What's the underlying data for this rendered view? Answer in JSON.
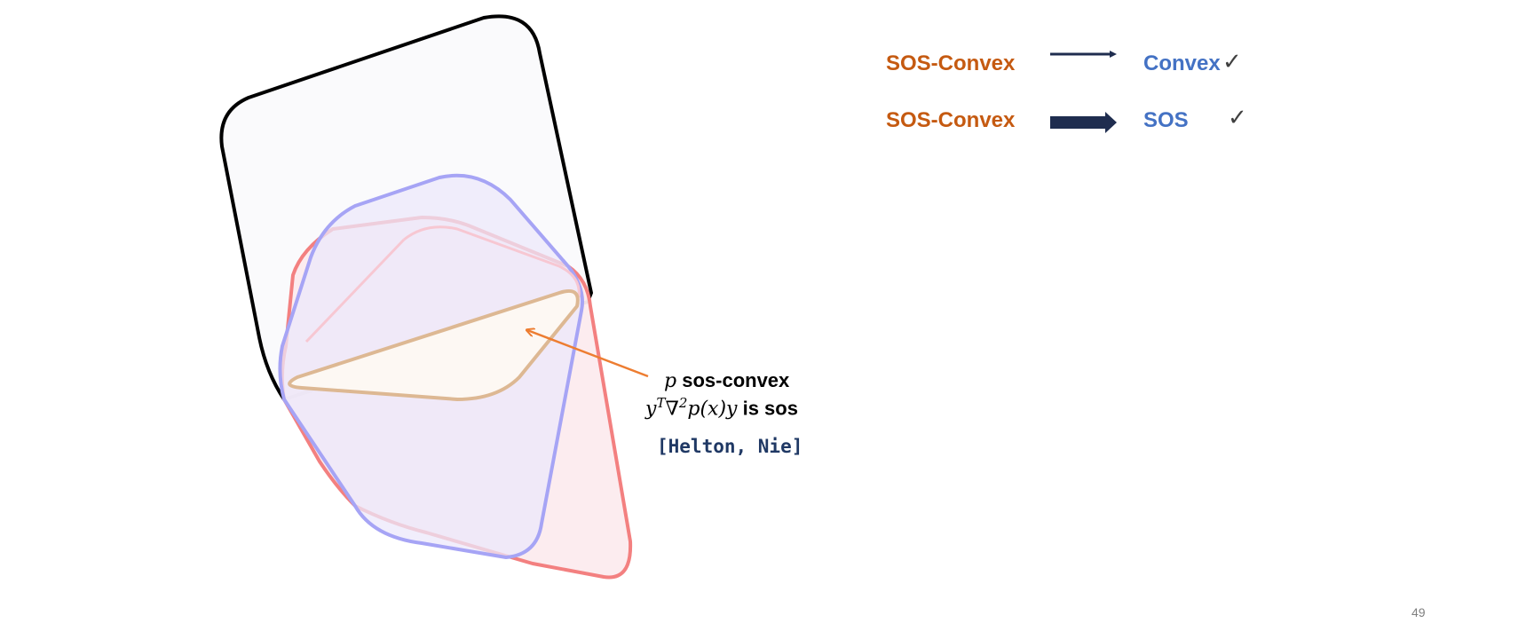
{
  "diagram": {
    "label_math": "p",
    "label_text": "sos-convex",
    "condition_math": "y",
    "condition_sup1": "T",
    "condition_nabla": "∇",
    "condition_sup2": "2",
    "condition_rest": "p(x)y",
    "condition_text": "is sos",
    "citation": "[Helton, Nie]"
  },
  "implications": [
    {
      "from": "SOS-Convex",
      "to": "Convex",
      "check": "✓",
      "arrow": "thin"
    },
    {
      "from": "SOS-Convex",
      "to": "SOS",
      "check": "✓",
      "arrow": "thick"
    }
  ],
  "colors": {
    "sos_convex": "#c55a11",
    "target": "#4472c4",
    "arrow": "#1f2d4f",
    "pointer": "#ed7d31"
  },
  "page_number": "49"
}
